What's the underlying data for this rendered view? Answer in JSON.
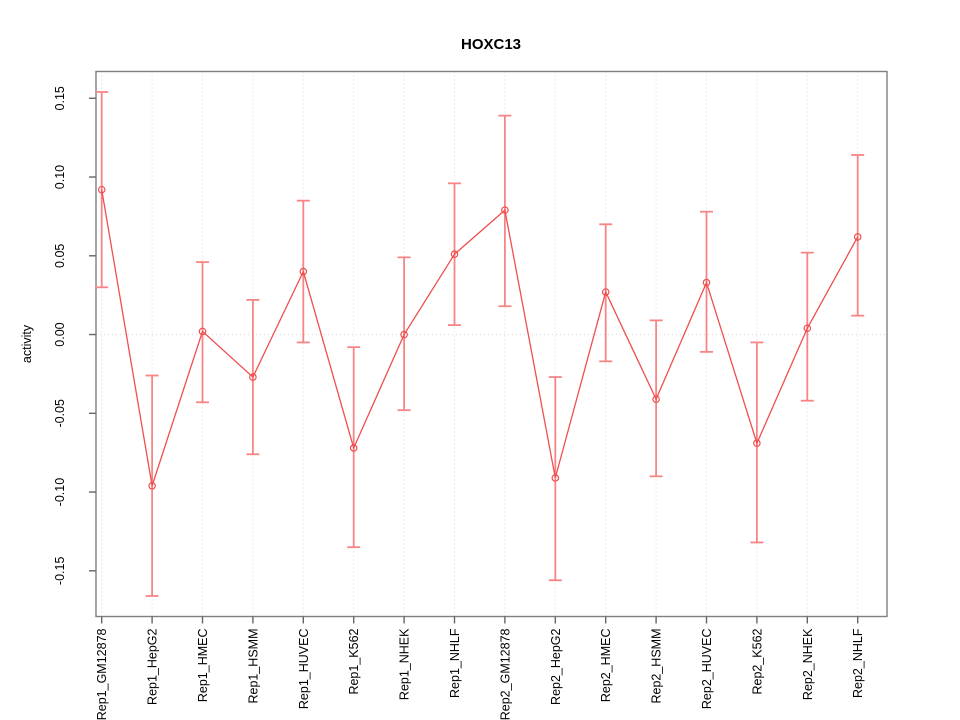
{
  "chart_data": {
    "type": "line",
    "title": "HOXC13",
    "xlabel": "",
    "ylabel": "activity",
    "categories": [
      "Rep1_GM12878",
      "Rep1_HepG2",
      "Rep1_HMEC",
      "Rep1_HSMM",
      "Rep1_HUVEC",
      "Rep1_K562",
      "Rep1_NHEK",
      "Rep1_NHLF",
      "Rep2_GM12878",
      "Rep2_HepG2",
      "Rep2_HMEC",
      "Rep2_HSMM",
      "Rep2_HUVEC",
      "Rep2_K562",
      "Rep2_NHEK",
      "Rep2_NHLF"
    ],
    "series": [
      {
        "name": "activity",
        "values": [
          0.092,
          -0.096,
          0.002,
          -0.027,
          0.04,
          -0.072,
          0.0,
          0.051,
          0.079,
          -0.091,
          0.027,
          -0.041,
          0.033,
          -0.069,
          0.004,
          0.062
        ],
        "ci_lower": [
          0.03,
          -0.166,
          -0.043,
          -0.076,
          -0.005,
          -0.135,
          -0.048,
          0.006,
          0.018,
          -0.156,
          -0.017,
          -0.09,
          -0.011,
          -0.132,
          -0.042,
          0.012
        ],
        "ci_upper": [
          0.154,
          -0.026,
          0.046,
          0.022,
          0.085,
          -0.008,
          0.049,
          0.096,
          0.139,
          -0.027,
          0.07,
          0.009,
          0.078,
          -0.005,
          0.052,
          0.114
        ]
      }
    ],
    "ylim": [
      -0.179,
      0.167
    ],
    "yticks": [
      0.15,
      0.1,
      0.05,
      0.0,
      -0.05,
      -0.1,
      -0.15
    ],
    "ytick_labels": [
      "0.15",
      "0.10",
      "0.05",
      "0.00",
      "-0.05",
      "-0.10",
      "-0.15"
    ],
    "grid": "vertical dotted line at each category",
    "zero_line": true,
    "legend": "none",
    "error_bars": true,
    "point_style": "open-circle",
    "colors": {
      "series": "#ee4f4f",
      "error_bars": "#f78585",
      "grid": "#d9d9d9",
      "box": "#7f7f7f",
      "tick": "#666666",
      "text": "#000000",
      "background": "#ffffff"
    }
  }
}
